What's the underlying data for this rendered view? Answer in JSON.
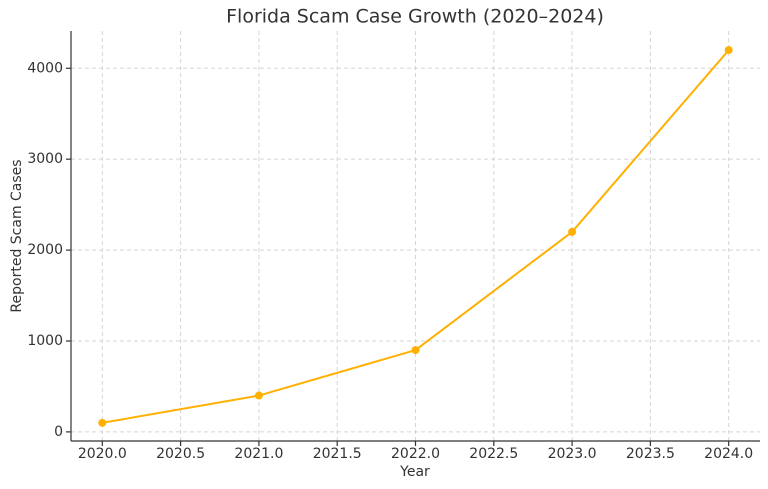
{
  "chart_data": {
    "type": "line",
    "title": "Florida Scam Case Growth (2020–2024)",
    "x_label": "Year",
    "y_label": "Reported Scam Cases",
    "x": [
      2020,
      2021,
      2022,
      2023,
      2024
    ],
    "series": [
      {
        "name": "Reported Scam Cases",
        "color": "#ffb000",
        "values": [
          100,
          400,
          900,
          2200,
          4200
        ]
      }
    ],
    "xlim": [
      2019.8,
      2024.2
    ],
    "xticks": [
      {
        "value": 2020,
        "label": "2020.0"
      },
      2020.5,
      {
        "value": 2021,
        "label": "2021.0"
      },
      2021.5,
      {
        "value": 2022,
        "label": "2022.0"
      },
      2022.5,
      {
        "value": 2023,
        "label": "2023.0"
      },
      2023.5,
      {
        "value": 2024,
        "label": "2024.0"
      }
    ],
    "ylim": [
      -100,
      4410
    ],
    "yticks": [
      0,
      1000,
      2000,
      3000,
      4000
    ],
    "grid": true
  }
}
